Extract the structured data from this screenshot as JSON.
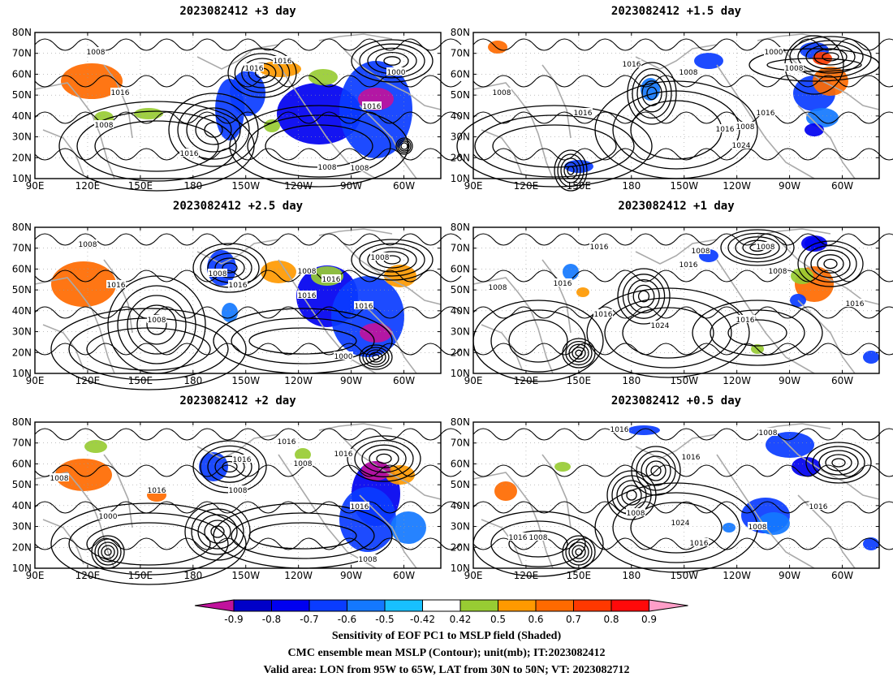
{
  "panels": [
    {
      "title": "2023082412  +3 day"
    },
    {
      "title": "2023082412  +1.5 day"
    },
    {
      "title": "2023082412  +2.5 day"
    },
    {
      "title": "2023082412  +1 day"
    },
    {
      "title": "2023082412  +2 day"
    },
    {
      "title": "2023082412  +0.5 day"
    }
  ],
  "axes": {
    "lat_ticks": [
      "80N",
      "70N",
      "60N",
      "50N",
      "40N",
      "30N",
      "20N",
      "10N"
    ],
    "lon_ticks": [
      "90E",
      "120E",
      "150E",
      "180",
      "150W",
      "120W",
      "90W",
      "60W"
    ]
  },
  "contour_labels": [
    [
      "1008",
      "1016",
      "1008",
      "1016",
      "1016",
      "1008",
      "1000",
      "1016",
      "1016",
      "1008"
    ],
    [
      "1016",
      "1008",
      "1016",
      "1008",
      "1016",
      "1024",
      "1000",
      "1008",
      "1016",
      "1008"
    ],
    [
      "1008",
      "1016",
      "1008",
      "1016",
      "1008",
      "1016",
      "1016",
      "1008",
      "1016",
      "1000",
      "1008"
    ],
    [
      "1016",
      "1008",
      "1016",
      "1008",
      "1016",
      "1016",
      "1024",
      "1008",
      "1016",
      "1016",
      "1008"
    ],
    [
      "1008",
      "1016",
      "1016",
      "1016",
      "1008",
      "1008",
      "1016",
      "1016",
      "1000",
      "1008"
    ],
    [
      "1016",
      "1016",
      "1008",
      "1008",
      "1024",
      "1016",
      "1016",
      "1008",
      "1016",
      "1008"
    ]
  ],
  "colorbar": {
    "labels": [
      "-0.9",
      "-0.8",
      "-0.7",
      "-0.6",
      "-0.5",
      "-0.42",
      "0.42",
      "0.5",
      "0.6",
      "0.7",
      "0.8",
      "0.9"
    ],
    "colors": [
      "#c0129c",
      "#0000c8",
      "#0000f0",
      "#0a3cff",
      "#1478ff",
      "#18c0ff",
      "#ffffff",
      "#98cc33",
      "#ff9900",
      "#ff6a00",
      "#ff3800",
      "#ff0a0a",
      "#ff9ec8"
    ]
  },
  "captions": [
    "Sensitivity of EOF PC1 to MSLP field (Shaded)",
    "CMC ensemble mean MSLP (Contour); unit(mb); IT:2023082412",
    "Valid area: LON from 95W to 65W, LAT from 30N to 50N; VT: 2023082712"
  ]
}
